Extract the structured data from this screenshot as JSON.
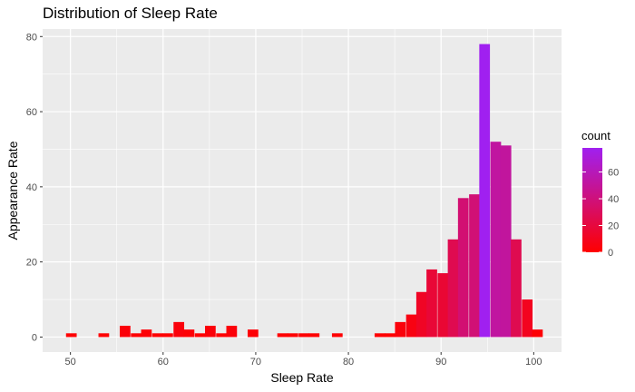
{
  "chart_data": {
    "type": "bar",
    "title": "Distribution of Sleep Rate",
    "xlabel": "Sleep Rate",
    "ylabel": "Appearance Rate",
    "xlim": [
      47,
      103
    ],
    "ylim": [
      -4,
      82
    ],
    "x_ticks": [
      50,
      60,
      70,
      80,
      90,
      100
    ],
    "y_ticks": [
      0,
      20,
      40,
      60,
      80
    ],
    "bin_width": 1.15,
    "bins": [
      {
        "x": 50.1,
        "count": 1
      },
      {
        "x": 53.6,
        "count": 1
      },
      {
        "x": 55.9,
        "count": 3
      },
      {
        "x": 57.1,
        "count": 1
      },
      {
        "x": 58.2,
        "count": 2
      },
      {
        "x": 59.4,
        "count": 1
      },
      {
        "x": 60.5,
        "count": 1
      },
      {
        "x": 61.7,
        "count": 4
      },
      {
        "x": 62.8,
        "count": 2
      },
      {
        "x": 64.0,
        "count": 1
      },
      {
        "x": 65.1,
        "count": 3
      },
      {
        "x": 66.3,
        "count": 1
      },
      {
        "x": 67.4,
        "count": 3
      },
      {
        "x": 69.7,
        "count": 2
      },
      {
        "x": 72.9,
        "count": 1
      },
      {
        "x": 74.0,
        "count": 1
      },
      {
        "x": 75.2,
        "count": 1
      },
      {
        "x": 76.3,
        "count": 1
      },
      {
        "x": 78.8,
        "count": 1
      },
      {
        "x": 83.4,
        "count": 1
      },
      {
        "x": 84.5,
        "count": 1
      },
      {
        "x": 85.6,
        "count": 4
      },
      {
        "x": 86.8,
        "count": 6
      },
      {
        "x": 87.9,
        "count": 12
      },
      {
        "x": 89.0,
        "count": 18
      },
      {
        "x": 90.2,
        "count": 17
      },
      {
        "x": 91.3,
        "count": 26
      },
      {
        "x": 92.4,
        "count": 37
      },
      {
        "x": 93.6,
        "count": 38
      },
      {
        "x": 94.7,
        "count": 78
      },
      {
        "x": 95.9,
        "count": 52
      },
      {
        "x": 97.0,
        "count": 51
      },
      {
        "x": 98.1,
        "count": 26
      },
      {
        "x": 99.3,
        "count": 10
      },
      {
        "x": 100.4,
        "count": 2
      }
    ],
    "legend": {
      "title": "count",
      "placement": "right",
      "labels": [
        "0",
        "20",
        "40",
        "60"
      ],
      "values": [
        0,
        20,
        40,
        60
      ],
      "min": 0,
      "max": 78
    },
    "colors": {
      "low": "#ff0000",
      "high": "#a020f0",
      "panel_background": "#ebebeb",
      "grid": "#ffffff"
    },
    "grid": true
  }
}
